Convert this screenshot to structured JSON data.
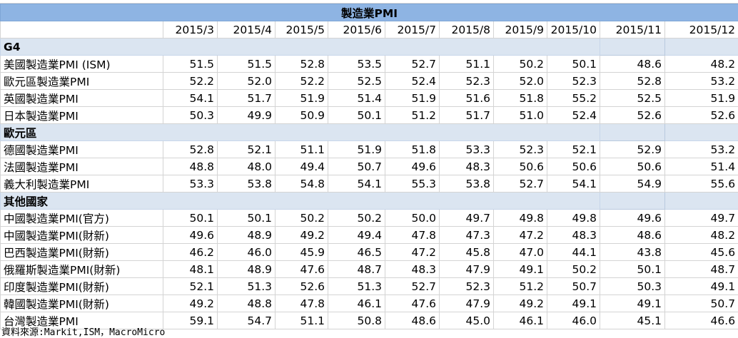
{
  "title": "製造業PMI",
  "columns": [
    "2015/3",
    "2015/4",
    "2015/5",
    "2015/6",
    "2015/7",
    "2015/8",
    "2015/9",
    "2015/10",
    "2015/11",
    "2015/12"
  ],
  "sections": [
    {
      "name": "G4",
      "rows": [
        {
          "label": "美國製造業PMI (ISM)",
          "values": [
            "51.5",
            "51.5",
            "52.8",
            "53.5",
            "52.7",
            "51.1",
            "50.2",
            "50.1",
            "48.6",
            "48.2"
          ]
        },
        {
          "label": "歐元區製造業PMI",
          "values": [
            "52.2",
            "52.0",
            "52.2",
            "52.5",
            "52.4",
            "52.3",
            "52.0",
            "52.3",
            "52.8",
            "53.2"
          ]
        },
        {
          "label": "英國製造業PMI",
          "values": [
            "54.1",
            "51.7",
            "51.9",
            "51.4",
            "51.9",
            "51.6",
            "51.8",
            "55.2",
            "52.5",
            "51.9"
          ]
        },
        {
          "label": "日本製造業PMI",
          "values": [
            "50.3",
            "49.9",
            "50.9",
            "50.1",
            "51.2",
            "51.7",
            "51.0",
            "52.4",
            "52.6",
            "52.6"
          ]
        }
      ]
    },
    {
      "name": "歐元區",
      "rows": [
        {
          "label": "德國製造業PMI",
          "values": [
            "52.8",
            "52.1",
            "51.1",
            "51.9",
            "51.8",
            "53.3",
            "52.3",
            "52.1",
            "52.9",
            "53.2"
          ]
        },
        {
          "label": "法國製造業PMI",
          "values": [
            "48.8",
            "48.0",
            "49.4",
            "50.7",
            "49.6",
            "48.3",
            "50.6",
            "50.6",
            "50.6",
            "51.4"
          ]
        },
        {
          "label": "義大利製造業PMI",
          "values": [
            "53.3",
            "53.8",
            "54.8",
            "54.1",
            "55.3",
            "53.8",
            "52.7",
            "54.1",
            "54.9",
            "55.6"
          ]
        }
      ]
    },
    {
      "name": "其他國家",
      "rows": [
        {
          "label": "中國製造業PMI(官方)",
          "values": [
            "50.1",
            "50.1",
            "50.2",
            "50.2",
            "50.0",
            "49.7",
            "49.8",
            "49.8",
            "49.6",
            "49.7"
          ]
        },
        {
          "label": "中國製造業PMI(財新)",
          "values": [
            "49.6",
            "48.9",
            "49.2",
            "49.4",
            "47.8",
            "47.3",
            "47.2",
            "48.3",
            "48.6",
            "48.2"
          ]
        },
        {
          "label": "巴西製造業PMI(財新)",
          "values": [
            "46.2",
            "46.0",
            "45.9",
            "46.5",
            "47.2",
            "45.8",
            "47.0",
            "44.1",
            "43.8",
            "45.6"
          ]
        },
        {
          "label": "俄羅斯製造業PMI(財新)",
          "values": [
            "48.1",
            "48.9",
            "47.6",
            "48.7",
            "48.3",
            "47.9",
            "49.1",
            "50.2",
            "50.1",
            "48.7"
          ]
        },
        {
          "label": "印度製造業PMI(財新)",
          "values": [
            "52.1",
            "51.3",
            "52.6",
            "51.3",
            "52.7",
            "52.3",
            "51.2",
            "50.7",
            "50.3",
            "49.1"
          ]
        },
        {
          "label": "韓國製造業PMI(財新)",
          "values": [
            "49.2",
            "48.8",
            "47.8",
            "46.1",
            "47.6",
            "47.9",
            "49.2",
            "49.1",
            "49.1",
            "50.7"
          ]
        },
        {
          "label": "台灣製造業PMI",
          "values": [
            "59.1",
            "54.7",
            "51.1",
            "50.8",
            "48.6",
            "45.0",
            "46.1",
            "46.0",
            "45.1",
            "46.6"
          ]
        }
      ]
    }
  ],
  "source": "資料來源:Markit,ISM，MacroMicro"
}
